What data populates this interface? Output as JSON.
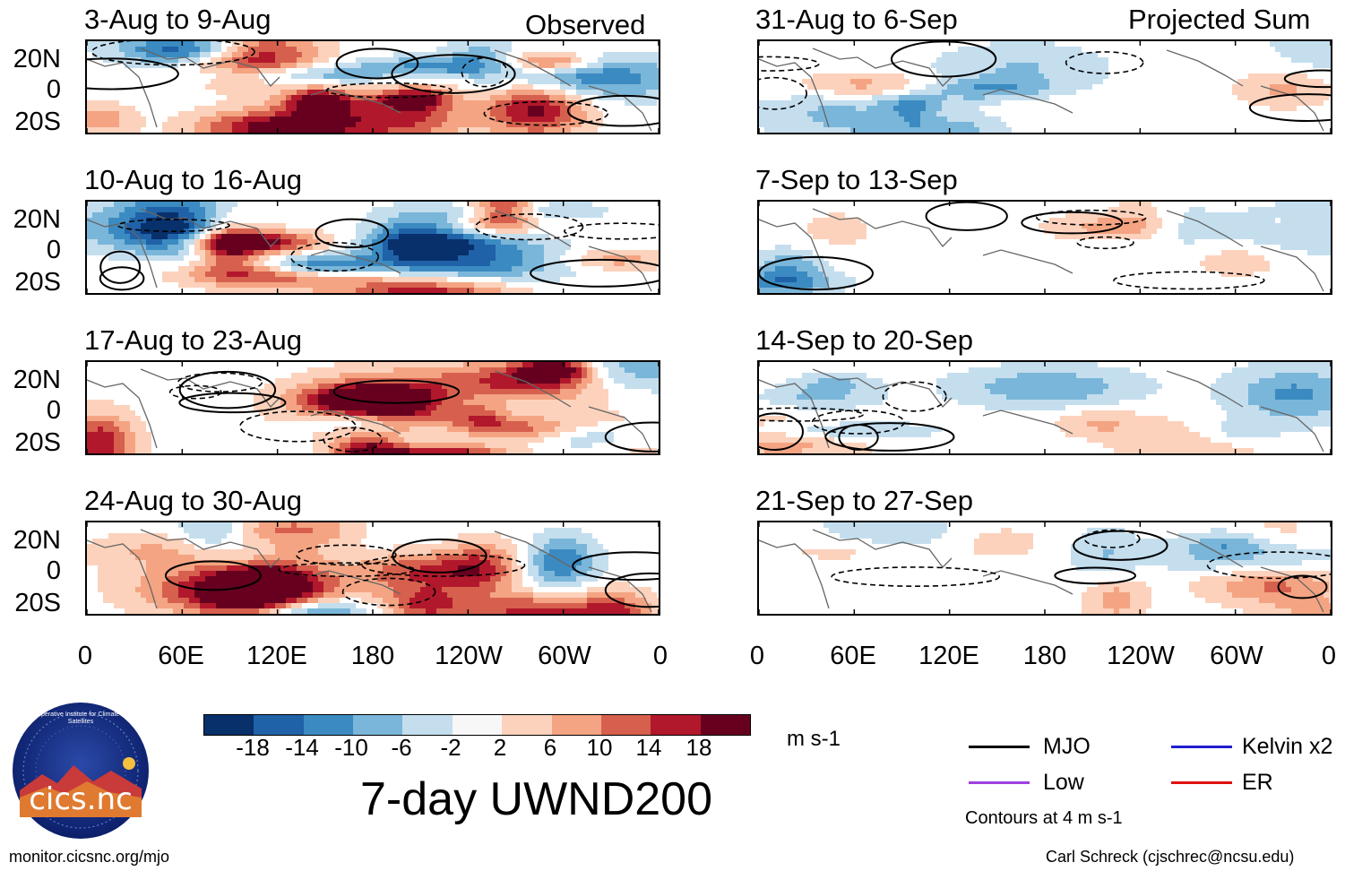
{
  "panels_observed_label": "Observed",
  "panels_projected_label": "Projected Sum",
  "panels": [
    {
      "title": "3-Aug to 9-Aug",
      "pattern": "obs1"
    },
    {
      "title": "10-Aug to 16-Aug",
      "pattern": "obs2"
    },
    {
      "title": "17-Aug to 23-Aug",
      "pattern": "obs3"
    },
    {
      "title": "24-Aug to 30-Aug",
      "pattern": "obs4"
    },
    {
      "title": "31-Aug to 6-Sep",
      "pattern": "proj1"
    },
    {
      "title": "7-Sep to 13-Sep",
      "pattern": "proj2"
    },
    {
      "title": "14-Sep to 20-Sep",
      "pattern": "proj3"
    },
    {
      "title": "21-Sep to 27-Sep",
      "pattern": "proj4"
    }
  ],
  "y_ticks": [
    "20N",
    "0",
    "20S"
  ],
  "x_ticks": [
    "0",
    "60E",
    "120E",
    "180",
    "120W",
    "60W",
    "0"
  ],
  "colorbar": {
    "labels": [
      "-18",
      "-14",
      "-10",
      "-6",
      "-2",
      "2",
      "6",
      "10",
      "14",
      "18"
    ],
    "colors": [
      "#08306b",
      "#1f62a8",
      "#3b8bc2",
      "#7ab6d9",
      "#c4deee",
      "#f7f7f7",
      "#fcd2bc",
      "#f4a482",
      "#d6604d",
      "#b2182b",
      "#67001f"
    ],
    "units": "m s-1"
  },
  "main_title": "7-day UWND200",
  "legend": {
    "items": [
      {
        "label": "MJO",
        "color": "#000000"
      },
      {
        "label": "Kelvin x2",
        "color": "#1f1fd0"
      },
      {
        "label": "Low",
        "color": "#a040e0"
      },
      {
        "label": "ER",
        "color": "#e01010"
      }
    ],
    "note": "Contours at 4 m s-1"
  },
  "logo_text": "cics.nc",
  "logo_ring_text": "Cooperative Institute for Climate and Satellites",
  "footer_left": "monitor.cicsnc.org/mjo",
  "footer_right": "Carl Schreck (cjschrec@ncsu.edu)"
}
